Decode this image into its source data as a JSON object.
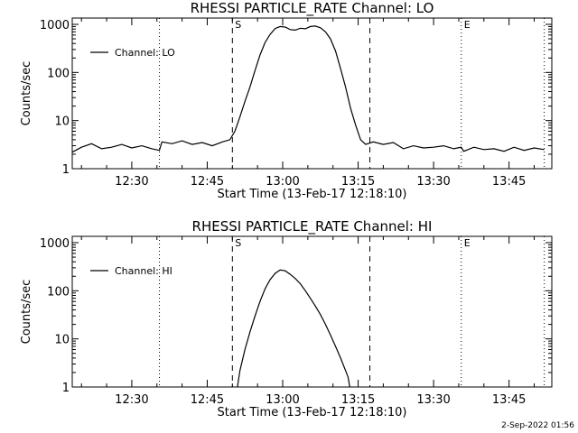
{
  "chart_data": [
    {
      "type": "line",
      "title": "RHESSI PARTICLE_RATE Channel: LO",
      "xlabel": "Start Time (13-Feb-17 12:18:10)",
      "ylabel": "Counts/sec",
      "yscale": "log",
      "ylim": [
        1,
        1000
      ],
      "xlim": [
        "12:18:10",
        "13:53:30"
      ],
      "x_tick_labels": [
        "12:30",
        "12:45",
        "13:00",
        "13:15",
        "13:30",
        "13:45"
      ],
      "y_tick_labels": [
        "1",
        "10",
        "100",
        "1000"
      ],
      "legend": "top-left",
      "series": [
        {
          "name": "Channel: LO",
          "x": [
            "12:18:10",
            "12:20:00",
            "12:22:00",
            "12:24:00",
            "12:26:00",
            "12:28:00",
            "12:30:00",
            "12:32:00",
            "12:34:00",
            "12:35:30",
            "12:36:00",
            "12:38:00",
            "12:40:00",
            "12:42:00",
            "12:44:00",
            "12:46:00",
            "12:48:00",
            "12:49:30",
            "12:50:30",
            "12:51:30",
            "12:52:30",
            "12:53:30",
            "12:54:30",
            "12:55:30",
            "12:56:30",
            "12:57:30",
            "12:58:30",
            "12:59:30",
            "13:00:30",
            "13:01:30",
            "13:02:30",
            "13:03:30",
            "13:04:30",
            "13:05:30",
            "13:06:30",
            "13:07:30",
            "13:08:30",
            "13:09:30",
            "13:10:30",
            "13:11:30",
            "13:12:30",
            "13:13:30",
            "13:14:30",
            "13:15:30",
            "13:16:30",
            "13:18:00",
            "13:20:00",
            "13:22:00",
            "13:24:00",
            "13:26:00",
            "13:28:00",
            "13:30:00",
            "13:32:00",
            "13:34:00",
            "13:35:30",
            "13:36:00",
            "13:38:00",
            "13:40:00",
            "13:42:00",
            "13:44:00",
            "13:46:00",
            "13:48:00",
            "13:50:00",
            "13:52:00"
          ],
          "y": [
            2.2,
            2.8,
            3.3,
            2.6,
            2.8,
            3.2,
            2.7,
            3.0,
            2.6,
            2.4,
            3.6,
            3.3,
            3.8,
            3.2,
            3.5,
            3.0,
            3.6,
            4.0,
            6,
            12,
            25,
            50,
            110,
            230,
            420,
            620,
            820,
            900,
            880,
            780,
            760,
            830,
            810,
            900,
            920,
            850,
            700,
            500,
            280,
            120,
            50,
            18,
            8,
            4.0,
            3.2,
            3.6,
            3.2,
            3.5,
            2.6,
            3.0,
            2.7,
            2.8,
            3.0,
            2.6,
            2.8,
            2.3,
            2.8,
            2.5,
            2.6,
            2.3,
            2.8,
            2.4,
            2.7,
            2.5
          ]
        }
      ],
      "annotations": [
        {
          "label": "S",
          "at": "12:50:00",
          "style": "dashed"
        },
        {
          "label": "",
          "at": "13:17:20",
          "style": "dashed"
        },
        {
          "label": "",
          "at": "12:35:30",
          "style": "dotted"
        },
        {
          "label": "E",
          "at": "13:35:30",
          "style": "dotted"
        },
        {
          "label": "",
          "at": "13:52:00",
          "style": "dotted"
        }
      ]
    },
    {
      "type": "line",
      "title": "RHESSI PARTICLE_RATE Channel: HI",
      "xlabel": "Start Time (13-Feb-17 12:18:10)",
      "ylabel": "Counts/sec",
      "yscale": "log",
      "ylim": [
        1,
        1000
      ],
      "xlim": [
        "12:18:10",
        "13:53:30"
      ],
      "x_tick_labels": [
        "12:30",
        "12:45",
        "13:00",
        "13:15",
        "13:30",
        "13:45"
      ],
      "y_tick_labels": [
        "1",
        "10",
        "100",
        "1000"
      ],
      "legend": "top-left",
      "series": [
        {
          "name": "Channel: HI",
          "x": [
            "12:51:00",
            "12:51:30",
            "12:52:30",
            "12:53:30",
            "12:54:30",
            "12:55:30",
            "12:56:30",
            "12:57:30",
            "12:58:30",
            "12:59:30",
            "13:00:30",
            "13:01:30",
            "13:02:30",
            "13:03:30",
            "13:04:30",
            "13:05:30",
            "13:06:30",
            "13:07:30",
            "13:08:30",
            "13:09:30",
            "13:10:30",
            "13:11:30",
            "13:12:30",
            "13:13:00",
            "13:13:20"
          ],
          "y": [
            1.0,
            2.2,
            6,
            14,
            30,
            60,
            110,
            170,
            230,
            270,
            260,
            220,
            180,
            140,
            100,
            70,
            48,
            32,
            20,
            12,
            7,
            4,
            2.2,
            1.6,
            1.0
          ]
        }
      ],
      "annotations": [
        {
          "label": "S",
          "at": "12:50:00",
          "style": "dashed"
        },
        {
          "label": "",
          "at": "13:17:20",
          "style": "dashed"
        },
        {
          "label": "",
          "at": "12:35:30",
          "style": "dotted"
        },
        {
          "label": "E",
          "at": "13:35:30",
          "style": "dotted"
        },
        {
          "label": "",
          "at": "13:52:00",
          "style": "dotted"
        }
      ]
    }
  ],
  "footer": {
    "timestamp": "2-Sep-2022 01:56"
  }
}
